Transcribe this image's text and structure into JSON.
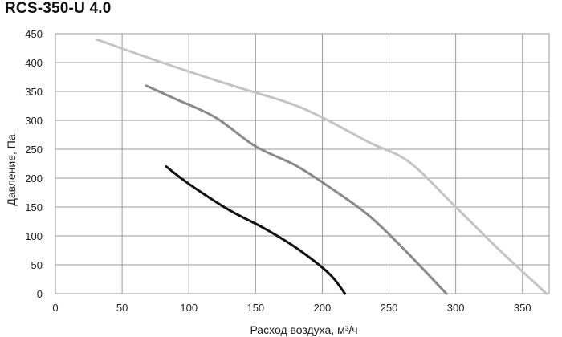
{
  "chart_data": {
    "type": "line",
    "title": "RCS-350-U 4.0",
    "xlabel": "Расход воздуха, м³/ч",
    "ylabel": "Давление, Па",
    "xlim": [
      0,
      370
    ],
    "ylim": [
      0,
      450
    ],
    "x_ticks": [
      "0",
      "50",
      "100",
      "150",
      "200",
      "250",
      "300",
      "350"
    ],
    "y_ticks": [
      "0",
      "50",
      "100",
      "150",
      "200",
      "250",
      "300",
      "350",
      "400",
      "450"
    ],
    "grid": true,
    "legend": "none",
    "series": [
      {
        "color": "#c4c4c4",
        "points": [
          [
            31,
            440
          ],
          [
            80,
            400
          ],
          [
            130,
            362
          ],
          [
            175,
            330
          ],
          [
            200,
            305
          ],
          [
            235,
            262
          ],
          [
            265,
            228
          ],
          [
            300,
            150
          ],
          [
            333,
            75
          ],
          [
            368,
            0
          ]
        ]
      },
      {
        "color": "#8a8a8a",
        "points": [
          [
            68,
            360
          ],
          [
            90,
            337
          ],
          [
            120,
            305
          ],
          [
            150,
            255
          ],
          [
            180,
            222
          ],
          [
            205,
            185
          ],
          [
            235,
            135
          ],
          [
            262,
            75
          ],
          [
            293,
            0
          ]
        ]
      },
      {
        "color": "#111111",
        "points": [
          [
            83,
            220
          ],
          [
            100,
            190
          ],
          [
            130,
            145
          ],
          [
            155,
            115
          ],
          [
            180,
            80
          ],
          [
            205,
            35
          ],
          [
            217,
            0
          ]
        ]
      }
    ]
  }
}
